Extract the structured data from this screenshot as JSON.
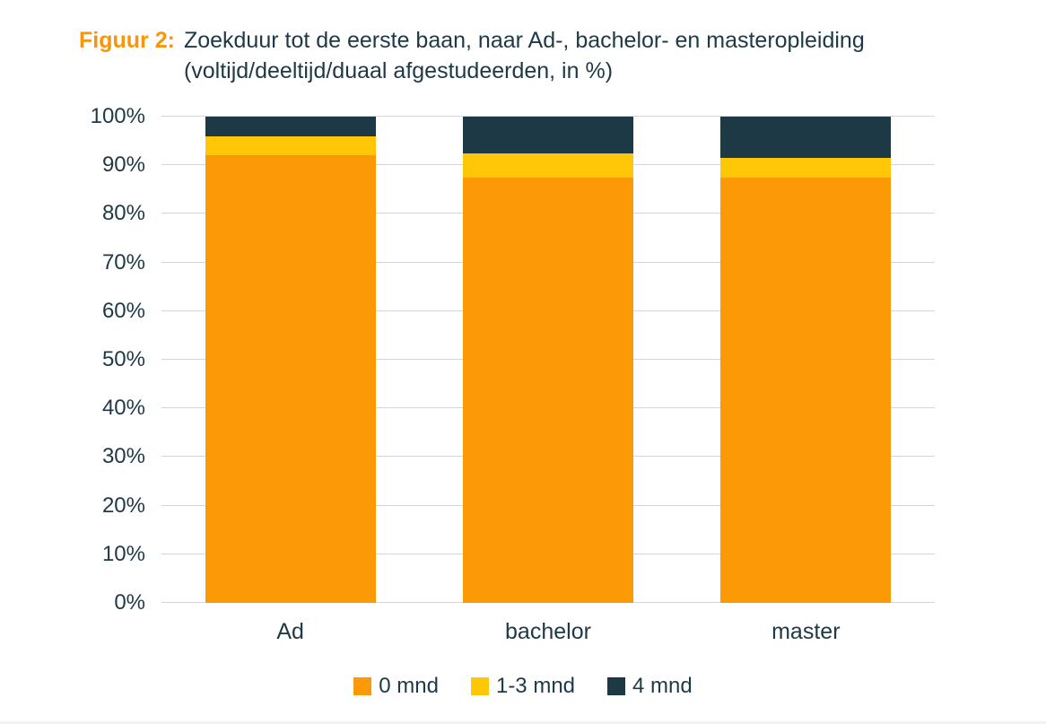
{
  "figure": {
    "label": "Figuur 2:",
    "title_line1": "Zoekduur tot de eerste baan, naar Ad-, bachelor- en masteropleiding",
    "title_line2": "(voltijd/deeltijd/duaal afgestudeerden, in %)"
  },
  "colors": {
    "accent_orange": "#F9950A",
    "text_navy": "#1E3946",
    "gridline": "#D5D5D5",
    "series_0_mnd": "#FB9906",
    "series_1_3_mnd": "#FFC708",
    "series_4_mnd": "#1E3946"
  },
  "chart_data": {
    "type": "bar",
    "stacked": true,
    "percent_stacked": true,
    "title": "Figuur 2: Zoekduur tot de eerste baan, naar Ad-, bachelor- en masteropleiding (voltijd/deeltijd/duaal afgestudeerden, in %)",
    "categories": [
      "Ad",
      "bachelor",
      "master"
    ],
    "series": [
      {
        "name": "0 mnd",
        "color": "#FB9906",
        "values": [
          92,
          87.5,
          87.5
        ]
      },
      {
        "name": "1-3 mnd",
        "color": "#FFC708",
        "values": [
          4,
          5,
          4
        ]
      },
      {
        "name": "4 mnd",
        "color": "#1E3946",
        "values": [
          4,
          7.5,
          8.5
        ]
      }
    ],
    "xlabel": "",
    "ylabel": "",
    "ylim": [
      0,
      100
    ],
    "yticks": [
      "0%",
      "10%",
      "20%",
      "30%",
      "40%",
      "50%",
      "60%",
      "70%",
      "80%",
      "90%",
      "100%"
    ],
    "grid": true,
    "legend_position": "bottom"
  }
}
